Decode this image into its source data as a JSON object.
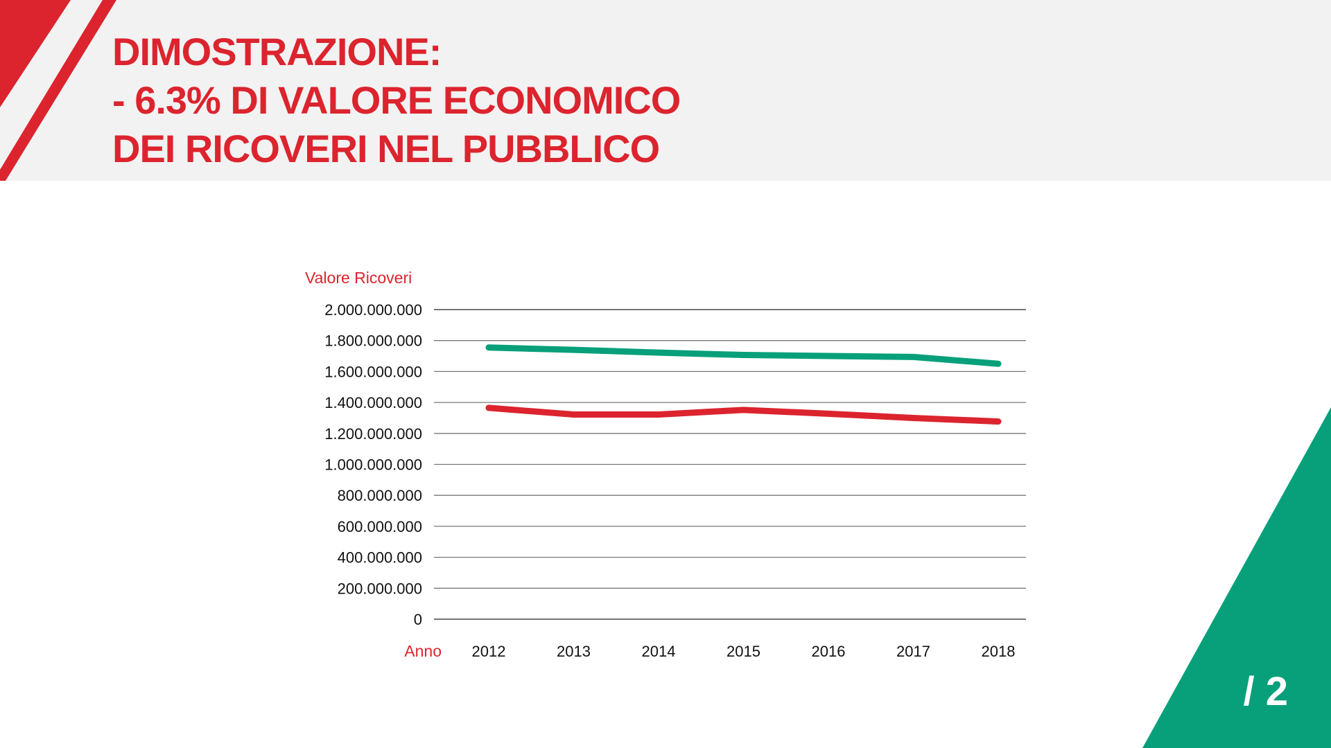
{
  "title": {
    "lines": [
      "DIMOSTRAZIONE:",
      "- 6.3% DI VALORE ECONOMICO",
      "DEI RICOVERI NEL PUBBLICO"
    ]
  },
  "page_number": "/ 2",
  "colors": {
    "red": "#dc242e",
    "green": "#07a07a",
    "header_bg": "#f2f2f2"
  },
  "chart_data": {
    "type": "line",
    "title": "",
    "ylabel": "Valore Ricoveri",
    "xlabel": "Anno",
    "categories": [
      "2012",
      "2013",
      "2014",
      "2015",
      "2016",
      "2017",
      "2018"
    ],
    "ylim": [
      0,
      2000000000
    ],
    "yticks": [
      0,
      200000000,
      400000000,
      600000000,
      800000000,
      1000000000,
      1200000000,
      1400000000,
      1600000000,
      1800000000,
      2000000000
    ],
    "ytick_labels": [
      "0",
      "200.000.000",
      "400.000.000",
      "600.000.000",
      "800.000.000",
      "1.000.000.000",
      "1.200.000.000",
      "1.400.000.000",
      "1.600.000.000",
      "1.800.000.000",
      "2.000.000.000"
    ],
    "grid": true,
    "legend": "none",
    "series": [
      {
        "name": "green-series",
        "color": "#07a07a",
        "values": [
          1755000000,
          1740000000,
          1722000000,
          1707000000,
          1700000000,
          1694000000,
          1650000000
        ]
      },
      {
        "name": "red-series",
        "color": "#dc242e",
        "values": [
          1365000000,
          1322000000,
          1322000000,
          1352000000,
          1327000000,
          1300000000,
          1277000000
        ]
      }
    ]
  }
}
